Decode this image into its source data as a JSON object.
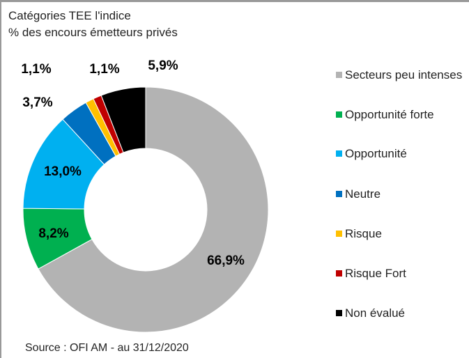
{
  "chart_data": {
    "type": "pie",
    "title": "Catégories TEE l'indice",
    "subtitle": "% des encours émetteurs privés",
    "source": "Source : OFI AM - au 31/12/2020",
    "categories": [
      "Secteurs peu intenses",
      "Opportunité forte",
      "Opportunité",
      "Neutre",
      "Risque",
      "Risque Fort",
      "Non évalué"
    ],
    "values": [
      66.9,
      8.2,
      13.0,
      3.7,
      1.1,
      1.1,
      5.9
    ],
    "value_labels": [
      "66,9%",
      "8,2%",
      "13,0%",
      "3,7%",
      "1,1%",
      "1,1%",
      "5,9%"
    ],
    "colors": [
      "#b3b3b3",
      "#00b050",
      "#00b0f0",
      "#0070c0",
      "#ffc000",
      "#c00000",
      "#000000"
    ],
    "legend": "right"
  }
}
